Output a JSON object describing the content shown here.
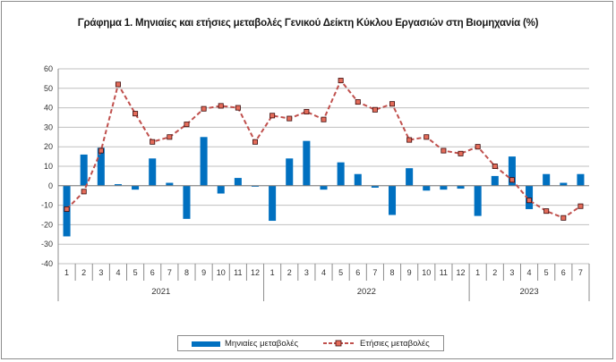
{
  "title": "Γράφημα 1. Μηνιαίες και ετήσιες μεταβολές  Γενικού Δείκτη Κύκλου Εργασιών στη Βιομηχανία (%)",
  "colors": {
    "bars": "#0070c0",
    "line": "#c0504d",
    "marker_fill": "#e46c5a",
    "marker_border": "#3b0a0a",
    "grid": "#bfbfbf"
  },
  "chart_data": {
    "type": "bar",
    "title": "Γράφημα 1. Μηνιαίες και ετήσιες μεταβολές  Γενικού Δείκτη Κύκλου Εργασιών στη Βιομηχανία (%)",
    "categories": [
      "1",
      "2",
      "3",
      "4",
      "5",
      "6",
      "7",
      "8",
      "9",
      "10",
      "11",
      "12",
      "1",
      "2",
      "3",
      "4",
      "5",
      "6",
      "7",
      "8",
      "9",
      "10",
      "11",
      "12",
      "1",
      "2",
      "3",
      "4",
      "5",
      "6",
      "7"
    ],
    "years": [
      {
        "label": "2021",
        "months": 12
      },
      {
        "label": "2022",
        "months": 12
      },
      {
        "label": "2023",
        "months": 7
      }
    ],
    "yticks": [
      60,
      50,
      40,
      30,
      20,
      10,
      0,
      -10,
      -20,
      -30,
      -40
    ],
    "ylim": [
      -40,
      60
    ],
    "grid": true,
    "legend_position": "bottom",
    "series": [
      {
        "name": "Μηνιαίες μεταβολές",
        "type": "bar",
        "color": "#0070c0",
        "values": [
          -26,
          16,
          19.5,
          0.8,
          -2,
          14,
          1.5,
          -17,
          25,
          -4,
          4,
          -0.5,
          -18,
          14,
          23,
          -2,
          12,
          6,
          -1,
          -15,
          9,
          -2.5,
          -2,
          -1.5,
          -15.5,
          5,
          15,
          -12,
          6,
          1.5,
          6
        ]
      },
      {
        "name": "Ετήσιες μεταβολές",
        "type": "line",
        "color": "#c0504d",
        "values": [
          -12,
          -3,
          18,
          52,
          37,
          22.5,
          25,
          31.5,
          39.5,
          41,
          40,
          22.5,
          36,
          34.5,
          38,
          34,
          54,
          43,
          39,
          42,
          23.5,
          25,
          18,
          16.5,
          20,
          10,
          3,
          -7.5,
          -13,
          -16.5,
          -10.5
        ]
      }
    ]
  }
}
